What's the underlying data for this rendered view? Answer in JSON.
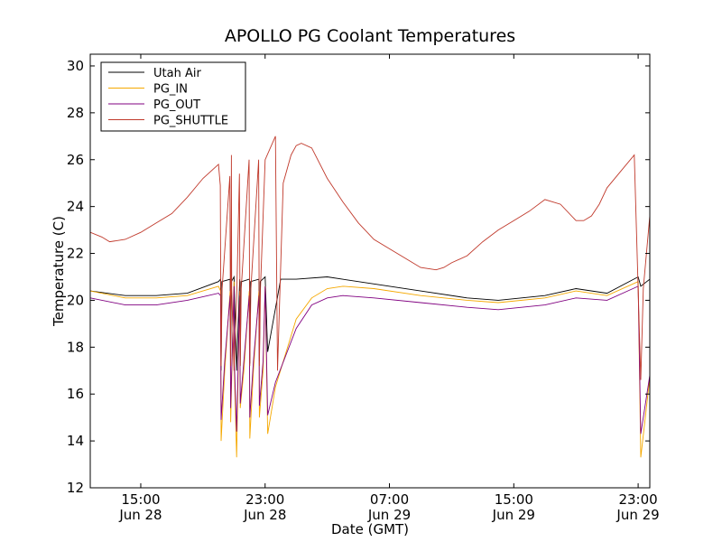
{
  "chart_data": {
    "type": "line",
    "title": "APOLLO PG Coolant Temperatures",
    "xlabel": "Date (GMT)",
    "ylabel": "Temperature (C)",
    "xlim": [
      "2023-06-28T11:45",
      "2023-06-29T23:45"
    ],
    "ylim": [
      12,
      30.5
    ],
    "yticks": [
      12,
      14,
      16,
      18,
      20,
      22,
      24,
      26,
      28,
      30
    ],
    "xticks": [
      {
        "at": "2023-06-28T15:00",
        "time": "15:00",
        "date": "Jun 28"
      },
      {
        "at": "2023-06-28T23:00",
        "time": "23:00",
        "date": "Jun 28"
      },
      {
        "at": "2023-06-29T07:00",
        "time": "07:00",
        "date": "Jun 29"
      },
      {
        "at": "2023-06-29T15:00",
        "time": "15:00",
        "date": "Jun 29"
      },
      {
        "at": "2023-06-29T23:00",
        "time": "23:00",
        "date": "Jun 29"
      }
    ],
    "grid": false,
    "legend_position": "top-left",
    "series": [
      {
        "name": "Utah Air",
        "color": "#000000",
        "x": [
          "2023-06-28T11:45",
          "2023-06-28T14:00",
          "2023-06-28T16:00",
          "2023-06-28T18:00",
          "2023-06-28T20:00",
          "2023-06-28T21:00",
          "2023-06-28T21:10",
          "2023-06-28T21:30",
          "2023-06-28T22:00",
          "2023-06-28T23:00",
          "2023-06-28T23:10",
          "2023-06-29T00:00",
          "2023-06-29T01:00",
          "2023-06-29T03:00",
          "2023-06-29T06:00",
          "2023-06-29T09:00",
          "2023-06-29T12:00",
          "2023-06-29T14:00",
          "2023-06-29T17:00",
          "2023-06-29T19:00",
          "2023-06-29T21:00",
          "2023-06-29T23:00",
          "2023-06-29T23:10",
          "2023-06-29T23:45"
        ],
        "y": [
          20.4,
          20.2,
          20.2,
          20.3,
          20.8,
          21.0,
          17.0,
          20.8,
          20.9,
          21.0,
          17.8,
          20.9,
          20.9,
          21.0,
          20.7,
          20.4,
          20.1,
          20.0,
          20.2,
          20.5,
          20.3,
          21.0,
          20.6,
          20.9
        ]
      },
      {
        "name": "PG_IN",
        "color": "#f5a800",
        "x": [
          "2023-06-28T11:45",
          "2023-06-28T14:00",
          "2023-06-28T16:00",
          "2023-06-28T18:00",
          "2023-06-28T20:00",
          "2023-06-28T21:00",
          "2023-06-28T21:10",
          "2023-06-28T22:00",
          "2023-06-28T23:00",
          "2023-06-28T23:10",
          "2023-06-28T23:40",
          "2023-06-29T01:00",
          "2023-06-29T02:00",
          "2023-06-29T03:00",
          "2023-06-29T04:00",
          "2023-06-29T06:00",
          "2023-06-29T09:00",
          "2023-06-29T12:00",
          "2023-06-29T14:00",
          "2023-06-29T17:00",
          "2023-06-29T19:00",
          "2023-06-29T21:00",
          "2023-06-29T23:00",
          "2023-06-29T23:10",
          "2023-06-29T23:45"
        ],
        "y": [
          20.4,
          20.1,
          20.1,
          20.2,
          20.6,
          20.8,
          13.3,
          17.5,
          20.6,
          14.3,
          16.3,
          19.2,
          20.1,
          20.5,
          20.6,
          20.5,
          20.2,
          20.0,
          19.9,
          20.1,
          20.4,
          20.2,
          20.8,
          13.3,
          16.7
        ]
      },
      {
        "name": "PG_OUT",
        "color": "#800080",
        "x": [
          "2023-06-28T11:45",
          "2023-06-28T14:00",
          "2023-06-28T16:00",
          "2023-06-28T18:00",
          "2023-06-28T20:00",
          "2023-06-28T21:00",
          "2023-06-28T21:10",
          "2023-06-28T22:00",
          "2023-06-28T23:00",
          "2023-06-28T23:10",
          "2023-06-28T23:40",
          "2023-06-29T01:00",
          "2023-06-29T02:00",
          "2023-06-29T03:00",
          "2023-06-29T04:00",
          "2023-06-29T06:00",
          "2023-06-29T09:00",
          "2023-06-29T12:00",
          "2023-06-29T14:00",
          "2023-06-29T17:00",
          "2023-06-29T19:00",
          "2023-06-29T21:00",
          "2023-06-29T23:00",
          "2023-06-29T23:10",
          "2023-06-29T23:45"
        ],
        "y": [
          20.1,
          19.8,
          19.8,
          20.0,
          20.3,
          20.6,
          14.4,
          17.3,
          20.6,
          15.1,
          16.5,
          18.8,
          19.8,
          20.1,
          20.2,
          20.1,
          19.9,
          19.7,
          19.6,
          19.8,
          20.1,
          20.0,
          20.6,
          14.3,
          16.8
        ]
      },
      {
        "name": "PG_SHUTTLE",
        "color": "#c0392b",
        "x": [
          "2023-06-28T11:45",
          "2023-06-28T12:30",
          "2023-06-28T13:00",
          "2023-06-28T14:00",
          "2023-06-28T15:00",
          "2023-06-28T16:00",
          "2023-06-28T17:00",
          "2023-06-28T18:00",
          "2023-06-28T19:00",
          "2023-06-28T20:00",
          "2023-06-28T20:50",
          "2023-06-28T21:00",
          "2023-06-28T21:10",
          "2023-06-28T23:00",
          "2023-06-28T23:40",
          "2023-06-28T23:48",
          "2023-06-29T00:10",
          "2023-06-29T00:40",
          "2023-06-29T01:00",
          "2023-06-29T01:20",
          "2023-06-29T02:00",
          "2023-06-29T03:00",
          "2023-06-29T04:00",
          "2023-06-29T05:00",
          "2023-06-29T06:00",
          "2023-06-29T07:00",
          "2023-06-29T08:00",
          "2023-06-29T09:00",
          "2023-06-29T10:00",
          "2023-06-29T10:30",
          "2023-06-29T11:00",
          "2023-06-29T12:00",
          "2023-06-29T13:00",
          "2023-06-29T14:00",
          "2023-06-29T15:00",
          "2023-06-29T16:00",
          "2023-06-29T17:00",
          "2023-06-29T18:00",
          "2023-06-29T19:00",
          "2023-06-29T19:30",
          "2023-06-29T20:00",
          "2023-06-29T20:30",
          "2023-06-29T21:00",
          "2023-06-29T22:00",
          "2023-06-29T22:45",
          "2023-06-29T23:10",
          "2023-06-29T23:20",
          "2023-06-29T23:45"
        ],
        "y": [
          22.9,
          22.7,
          22.5,
          22.6,
          22.9,
          23.3,
          23.7,
          24.4,
          25.2,
          25.8,
          26.2,
          17.0,
          20.0,
          26.0,
          27.0,
          17.0,
          25.0,
          26.2,
          26.6,
          26.7,
          26.5,
          25.2,
          24.2,
          23.3,
          22.6,
          22.2,
          21.8,
          21.4,
          21.3,
          21.4,
          21.6,
          21.9,
          22.5,
          23.0,
          23.4,
          23.8,
          24.3,
          24.1,
          23.4,
          23.4,
          23.6,
          24.1,
          24.8,
          25.6,
          26.2,
          16.6,
          20.5,
          23.6
        ]
      }
    ],
    "spikes": {
      "times": [
        "2023-06-28T20:10",
        "2023-06-28T20:47",
        "2023-06-28T21:24",
        "2023-06-28T22:01",
        "2023-06-28T22:38"
      ],
      "shuttle_peak": [
        24.9,
        25.3,
        25.4,
        26.0,
        26.0
      ],
      "in_trough": [
        14.0,
        14.8,
        15.4,
        14.1,
        15.0
      ],
      "out_trough": [
        14.9,
        15.4,
        15.6,
        15.0,
        15.5
      ],
      "air_trough": [
        17.0,
        17.6,
        17.2,
        17.3,
        17.4
      ]
    }
  }
}
